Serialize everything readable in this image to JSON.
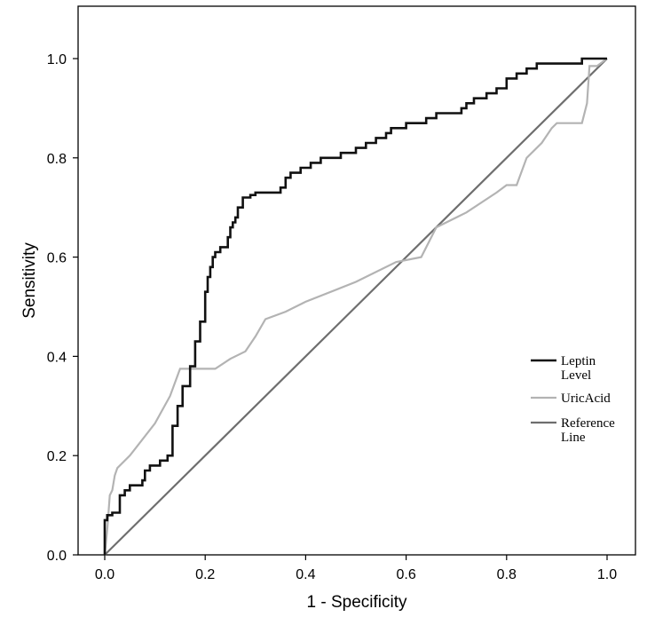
{
  "chart_data": {
    "type": "line",
    "title": "",
    "xlabel": "1 - Specificity",
    "ylabel": "Sensitivity",
    "xlim": [
      0,
      1
    ],
    "ylim": [
      0,
      1
    ],
    "x_ticks": [
      "0.0",
      "0.2",
      "0.4",
      "0.6",
      "0.8",
      "1.0"
    ],
    "y_ticks": [
      "0.0",
      "0.2",
      "0.4",
      "0.6",
      "0.8",
      "1.0"
    ],
    "grid": false,
    "legend_position": "right",
    "series": [
      {
        "name": "Leptin Level",
        "name_lines": [
          "Leptin",
          "Level"
        ],
        "color": "#111111",
        "step": true,
        "points": [
          [
            0,
            0
          ],
          [
            0,
            0.07
          ],
          [
            0.005,
            0.07
          ],
          [
            0.005,
            0.08
          ],
          [
            0.015,
            0.08
          ],
          [
            0.015,
            0.085
          ],
          [
            0.03,
            0.085
          ],
          [
            0.03,
            0.12
          ],
          [
            0.04,
            0.12
          ],
          [
            0.04,
            0.13
          ],
          [
            0.05,
            0.13
          ],
          [
            0.05,
            0.14
          ],
          [
            0.075,
            0.14
          ],
          [
            0.075,
            0.15
          ],
          [
            0.08,
            0.15
          ],
          [
            0.08,
            0.17
          ],
          [
            0.09,
            0.17
          ],
          [
            0.09,
            0.18
          ],
          [
            0.11,
            0.18
          ],
          [
            0.11,
            0.19
          ],
          [
            0.125,
            0.19
          ],
          [
            0.125,
            0.2
          ],
          [
            0.135,
            0.2
          ],
          [
            0.135,
            0.26
          ],
          [
            0.145,
            0.26
          ],
          [
            0.145,
            0.3
          ],
          [
            0.155,
            0.3
          ],
          [
            0.155,
            0.34
          ],
          [
            0.17,
            0.34
          ],
          [
            0.17,
            0.38
          ],
          [
            0.18,
            0.38
          ],
          [
            0.18,
            0.43
          ],
          [
            0.19,
            0.43
          ],
          [
            0.19,
            0.47
          ],
          [
            0.2,
            0.47
          ],
          [
            0.2,
            0.53
          ],
          [
            0.205,
            0.53
          ],
          [
            0.205,
            0.56
          ],
          [
            0.21,
            0.56
          ],
          [
            0.21,
            0.58
          ],
          [
            0.215,
            0.58
          ],
          [
            0.215,
            0.6
          ],
          [
            0.22,
            0.6
          ],
          [
            0.22,
            0.61
          ],
          [
            0.23,
            0.61
          ],
          [
            0.23,
            0.62
          ],
          [
            0.245,
            0.62
          ],
          [
            0.245,
            0.64
          ],
          [
            0.25,
            0.64
          ],
          [
            0.25,
            0.66
          ],
          [
            0.255,
            0.66
          ],
          [
            0.255,
            0.67
          ],
          [
            0.26,
            0.67
          ],
          [
            0.26,
            0.68
          ],
          [
            0.265,
            0.68
          ],
          [
            0.265,
            0.7
          ],
          [
            0.275,
            0.7
          ],
          [
            0.275,
            0.72
          ],
          [
            0.29,
            0.72
          ],
          [
            0.29,
            0.725
          ],
          [
            0.3,
            0.725
          ],
          [
            0.3,
            0.73
          ],
          [
            0.35,
            0.73
          ],
          [
            0.35,
            0.74
          ],
          [
            0.36,
            0.74
          ],
          [
            0.36,
            0.76
          ],
          [
            0.37,
            0.76
          ],
          [
            0.37,
            0.77
          ],
          [
            0.39,
            0.77
          ],
          [
            0.39,
            0.78
          ],
          [
            0.41,
            0.78
          ],
          [
            0.41,
            0.79
          ],
          [
            0.43,
            0.79
          ],
          [
            0.43,
            0.8
          ],
          [
            0.47,
            0.8
          ],
          [
            0.47,
            0.81
          ],
          [
            0.5,
            0.81
          ],
          [
            0.5,
            0.82
          ],
          [
            0.52,
            0.82
          ],
          [
            0.52,
            0.83
          ],
          [
            0.54,
            0.83
          ],
          [
            0.54,
            0.84
          ],
          [
            0.56,
            0.84
          ],
          [
            0.56,
            0.85
          ],
          [
            0.57,
            0.85
          ],
          [
            0.57,
            0.86
          ],
          [
            0.6,
            0.86
          ],
          [
            0.6,
            0.87
          ],
          [
            0.64,
            0.87
          ],
          [
            0.64,
            0.88
          ],
          [
            0.66,
            0.88
          ],
          [
            0.66,
            0.89
          ],
          [
            0.71,
            0.89
          ],
          [
            0.71,
            0.9
          ],
          [
            0.72,
            0.9
          ],
          [
            0.72,
            0.91
          ],
          [
            0.735,
            0.91
          ],
          [
            0.735,
            0.92
          ],
          [
            0.76,
            0.92
          ],
          [
            0.76,
            0.93
          ],
          [
            0.78,
            0.93
          ],
          [
            0.78,
            0.94
          ],
          [
            0.8,
            0.94
          ],
          [
            0.8,
            0.96
          ],
          [
            0.82,
            0.96
          ],
          [
            0.82,
            0.97
          ],
          [
            0.84,
            0.97
          ],
          [
            0.84,
            0.98
          ],
          [
            0.86,
            0.98
          ],
          [
            0.86,
            0.99
          ],
          [
            0.95,
            0.99
          ],
          [
            0.95,
            1.0
          ],
          [
            1.0,
            1.0
          ]
        ]
      },
      {
        "name": "UricAcid",
        "name_lines": [
          "UricAcid"
        ],
        "color": "#b3b3b3",
        "step": false,
        "points": [
          [
            0,
            0
          ],
          [
            0.005,
            0.05
          ],
          [
            0.01,
            0.12
          ],
          [
            0.015,
            0.13
          ],
          [
            0.02,
            0.16
          ],
          [
            0.025,
            0.175
          ],
          [
            0.05,
            0.2
          ],
          [
            0.1,
            0.265
          ],
          [
            0.13,
            0.32
          ],
          [
            0.15,
            0.375
          ],
          [
            0.22,
            0.375
          ],
          [
            0.25,
            0.395
          ],
          [
            0.28,
            0.41
          ],
          [
            0.3,
            0.44
          ],
          [
            0.32,
            0.475
          ],
          [
            0.36,
            0.49
          ],
          [
            0.4,
            0.51
          ],
          [
            0.5,
            0.55
          ],
          [
            0.58,
            0.59
          ],
          [
            0.63,
            0.6
          ],
          [
            0.66,
            0.66
          ],
          [
            0.72,
            0.69
          ],
          [
            0.78,
            0.73
          ],
          [
            0.8,
            0.745
          ],
          [
            0.82,
            0.745
          ],
          [
            0.84,
            0.8
          ],
          [
            0.87,
            0.83
          ],
          [
            0.89,
            0.86
          ],
          [
            0.9,
            0.87
          ],
          [
            0.95,
            0.87
          ],
          [
            0.96,
            0.91
          ],
          [
            0.965,
            0.985
          ],
          [
            0.98,
            0.985
          ],
          [
            1.0,
            1.0
          ]
        ]
      },
      {
        "name": "Reference Line",
        "name_lines": [
          "Reference",
          "Line"
        ],
        "color": "#6e6e6e",
        "step": false,
        "points": [
          [
            0,
            0
          ],
          [
            1,
            1
          ]
        ]
      }
    ]
  }
}
